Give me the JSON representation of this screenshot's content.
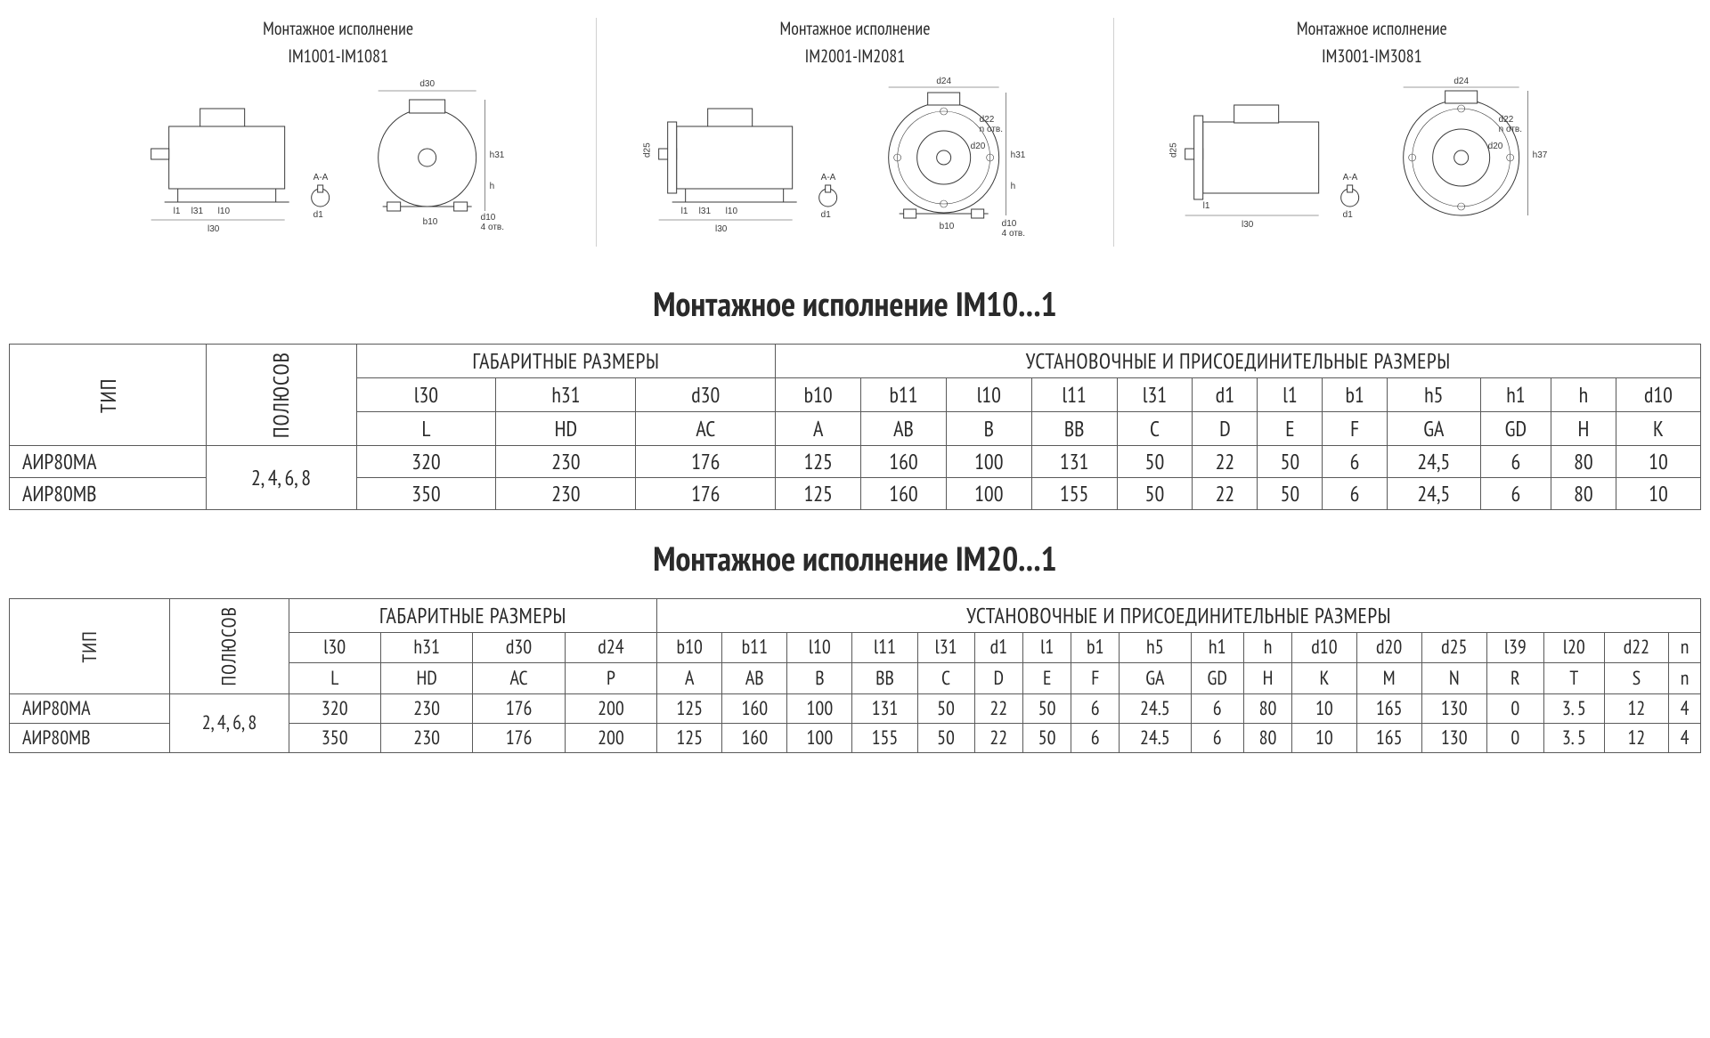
{
  "diagrams": {
    "caption": "Монтажное исполнение",
    "variants": [
      "IM1001-IM1081",
      "IM2001-IM2081",
      "IM3001-IM3081"
    ],
    "dim_labels": [
      "d30",
      "h31",
      "h",
      "b10",
      "d10",
      "4 отв.",
      "l30",
      "l1",
      "l31",
      "l10",
      "d1",
      "A-A",
      "d24",
      "d22",
      "n отв.",
      "d20",
      "d25",
      "h37"
    ],
    "length_label": "l30"
  },
  "table1": {
    "title": "Монтажное исполнение IM10...1",
    "col_type": "ТИП",
    "col_poles": "ПОЛЮСОВ",
    "group_overall": "ГАБАРИТНЫЕ РАЗМЕРЫ",
    "group_mount": "УСТАНОВОЧНЫЕ И ПРИСОЕДИНИТЕЛЬНЫЕ РАЗМЕРЫ",
    "head_row1": [
      "l30",
      "h31",
      "d30",
      "b10",
      "b11",
      "l10",
      "l11",
      "l31",
      "d1",
      "l1",
      "b1",
      "h5",
      "h1",
      "h",
      "d10"
    ],
    "head_row2": [
      "L",
      "HD",
      "AC",
      "A",
      "AB",
      "B",
      "BB",
      "C",
      "D",
      "E",
      "F",
      "GA",
      "GD",
      "H",
      "K"
    ],
    "poles": "2, 4, 6, 8",
    "rows": [
      {
        "type": "АИР80МА",
        "v": [
          "320",
          "230",
          "176",
          "125",
          "160",
          "100",
          "131",
          "50",
          "22",
          "50",
          "6",
          "24,5",
          "6",
          "80",
          "10"
        ]
      },
      {
        "type": "АИР80МВ",
        "v": [
          "350",
          "230",
          "176",
          "125",
          "160",
          "100",
          "155",
          "50",
          "22",
          "50",
          "6",
          "24,5",
          "6",
          "80",
          "10"
        ]
      }
    ]
  },
  "table2": {
    "title": "Монтажное исполнение IM20...1",
    "col_type": "ТИП",
    "col_poles": "ПОЛЮСОВ",
    "group_overall": "ГАБАРИТНЫЕ РАЗМЕРЫ",
    "group_mount": "УСТАНОВОЧНЫЕ И ПРИСОЕДИНИТЕЛЬНЫЕ РАЗМЕРЫ",
    "head_row1": [
      "l30",
      "h31",
      "d30",
      "d24",
      "b10",
      "b11",
      "l10",
      "l11",
      "l31",
      "d1",
      "l1",
      "b1",
      "h5",
      "h1",
      "h",
      "d10",
      "d20",
      "d25",
      "l39",
      "l20",
      "d22",
      "n"
    ],
    "head_row2": [
      "L",
      "HD",
      "AC",
      "P",
      "A",
      "AB",
      "B",
      "BB",
      "C",
      "D",
      "E",
      "F",
      "GA",
      "GD",
      "H",
      "K",
      "M",
      "N",
      "R",
      "T",
      "S",
      "n"
    ],
    "poles": "2, 4, 6, 8",
    "rows": [
      {
        "type": "АИР80МА",
        "v": [
          "320",
          "230",
          "176",
          "200",
          "125",
          "160",
          "100",
          "131",
          "50",
          "22",
          "50",
          "6",
          "24.5",
          "6",
          "80",
          "10",
          "165",
          "130",
          "0",
          "3. 5",
          "12",
          "4"
        ]
      },
      {
        "type": "АИР80МВ",
        "v": [
          "350",
          "230",
          "176",
          "200",
          "125",
          "160",
          "100",
          "155",
          "50",
          "22",
          "50",
          "6",
          "24.5",
          "6",
          "80",
          "10",
          "165",
          "130",
          "0",
          "3. 5",
          "12",
          "4"
        ]
      }
    ]
  },
  "style": {
    "border_color": "#5a5a5a",
    "text_color": "#2a2a2a",
    "bg": "#ffffff",
    "title_fontsize": 38,
    "table1_fontsize": 24,
    "table2_fontsize": 22
  }
}
